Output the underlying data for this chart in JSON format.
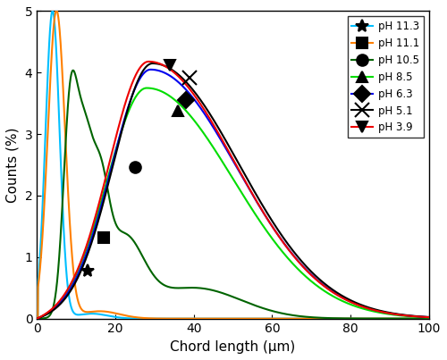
{
  "title": "",
  "xlabel": "Chord length (μm)",
  "ylabel": "Counts (%)",
  "xlim": [
    0,
    100
  ],
  "ylim": [
    0,
    5
  ],
  "xticks": [
    0,
    20,
    40,
    60,
    80,
    100
  ],
  "yticks": [
    0,
    1,
    2,
    3,
    4,
    5
  ],
  "series": [
    {
      "label": "pH 11.3",
      "color": "#00BFFF",
      "marker": "*",
      "marker_x": 13,
      "marker_y": 0.78
    },
    {
      "label": "pH 11.1",
      "color": "#FF8000",
      "marker": "s",
      "marker_x": 17,
      "marker_y": 1.32
    },
    {
      "label": "pH 10.5",
      "color": "#006400",
      "marker": "o",
      "marker_x": 25,
      "marker_y": 2.47
    },
    {
      "label": "pH 8.5",
      "color": "#00DD00",
      "marker": "^",
      "marker_x": 36,
      "marker_y": 3.38
    },
    {
      "label": "pH 6.3",
      "color": "#0000EE",
      "marker": "D",
      "marker_x": 38,
      "marker_y": 3.55
    },
    {
      "label": "pH 5.1",
      "color": "#000000",
      "marker": "x",
      "marker_x": 39,
      "marker_y": 3.92
    },
    {
      "label": "pH 3.9",
      "color": "#EE0000",
      "marker": "v",
      "marker_x": 34,
      "marker_y": 4.12
    }
  ],
  "legend_loc": "upper right",
  "figsize": [
    5.0,
    4.03
  ],
  "dpi": 100
}
